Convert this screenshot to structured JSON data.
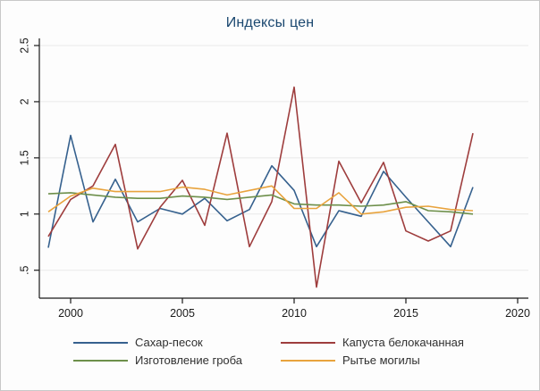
{
  "figure": {
    "title": "Индексы цен",
    "title_color": "#1a476f",
    "background": "#fdfdfd",
    "border_color": "#c8c8c8"
  },
  "chart_data": {
    "type": "line",
    "title": "Индексы цен",
    "xlabel": "",
    "ylabel": "",
    "grid": true,
    "grid_color": "#e9e9e9",
    "axis_color": "#1a1a1a",
    "legend_position": "bottom",
    "xlim": [
      1998.6,
      2020.5
    ],
    "ylim": [
      0.25,
      2.56
    ],
    "xticks": [
      2000,
      2005,
      2010,
      2015,
      2020
    ],
    "ytick_labels": [
      ".5",
      "1",
      "1.5",
      "2",
      "2.5"
    ],
    "ytick_values": [
      0.5,
      1.0,
      1.5,
      2.0,
      2.5
    ],
    "x": [
      1999,
      2000,
      2001,
      2002,
      2003,
      2004,
      2005,
      2006,
      2007,
      2008,
      2009,
      2010,
      2011,
      2012,
      2013,
      2014,
      2015,
      2016,
      2017,
      2018
    ],
    "series": [
      {
        "name": "Сахар-песок",
        "color": "#36618e",
        "values": [
          0.7,
          1.7,
          0.93,
          1.31,
          0.93,
          1.05,
          1.0,
          1.14,
          0.94,
          1.04,
          1.43,
          1.21,
          0.71,
          1.03,
          0.98,
          1.38,
          1.15,
          0.93,
          0.71,
          1.24
        ]
      },
      {
        "name": "Капуста белокачанная",
        "color": "#9e3d3d",
        "values": [
          0.8,
          1.13,
          1.25,
          1.62,
          0.69,
          1.06,
          1.3,
          0.9,
          1.72,
          0.71,
          1.11,
          2.13,
          0.35,
          1.47,
          1.1,
          1.46,
          0.85,
          0.76,
          0.85,
          1.72
        ]
      },
      {
        "name": "Изготовление гроба",
        "color": "#6d8f4a",
        "values": [
          1.18,
          1.19,
          1.17,
          1.15,
          1.14,
          1.14,
          1.16,
          1.15,
          1.13,
          1.15,
          1.17,
          1.09,
          1.08,
          1.08,
          1.07,
          1.08,
          1.11,
          1.03,
          1.02,
          1.0
        ]
      },
      {
        "name": "Рытье могилы",
        "color": "#e8a33d",
        "values": [
          1.02,
          1.16,
          1.23,
          1.2,
          1.2,
          1.2,
          1.24,
          1.22,
          1.17,
          1.21,
          1.25,
          1.05,
          1.05,
          1.19,
          1.0,
          1.02,
          1.06,
          1.07,
          1.04,
          1.03
        ]
      }
    ]
  }
}
